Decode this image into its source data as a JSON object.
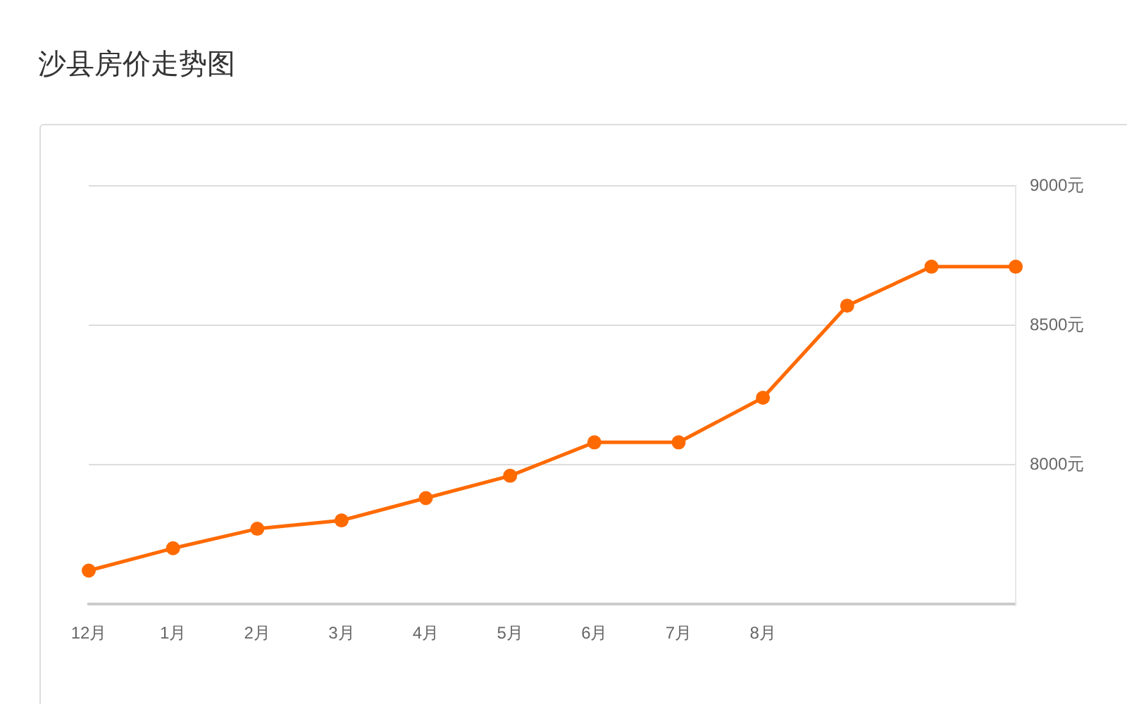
{
  "chart_data": {
    "type": "line",
    "title": "沙县房价走势图",
    "categories": [
      "12月",
      "1月",
      "2月",
      "3月",
      "4月",
      "5月",
      "6月",
      "7月",
      "8月",
      null,
      null,
      null
    ],
    "series": [
      {
        "color": "#ff6a00",
        "values": [
          7620,
          7700,
          7770,
          7800,
          7880,
          7960,
          8080,
          8080,
          8240,
          8570,
          8710,
          8710
        ]
      }
    ],
    "ylim": [
      7500,
      9000
    ],
    "yticks": [
      {
        "value": 8000,
        "label": "8000元"
      },
      {
        "value": 8500,
        "label": "8500元"
      },
      {
        "value": 9000,
        "label": "9000元"
      }
    ],
    "grid": "y",
    "legend": false,
    "marker": "circle",
    "line_style": "solid"
  }
}
